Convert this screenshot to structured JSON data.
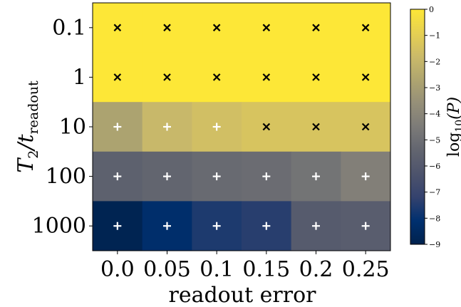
{
  "chart_data": {
    "type": "heatmap",
    "title": "",
    "xlabel": "readout error",
    "ylabel": "T₂/t_readout",
    "ylabel_main": "T",
    "ylabel_sub1": "2",
    "ylabel_mid": "/t",
    "ylabel_sub2": "readout",
    "x_categories": [
      "0.0",
      "0.05",
      "0.1",
      "0.15",
      "0.2",
      "0.25"
    ],
    "y_categories": [
      "0.1",
      "1",
      "10",
      "100",
      "1000"
    ],
    "values": [
      [
        0,
        0,
        0,
        0,
        0,
        0
      ],
      [
        0,
        0,
        0,
        0,
        0,
        0
      ],
      [
        -2.8,
        -1.9,
        -1.6,
        -1.4,
        -1.4,
        -1.4
      ],
      [
        -5.6,
        -5.4,
        -5.2,
        -5.1,
        -4.8,
        -4.3
      ],
      [
        -8.9,
        -8.2,
        -7.6,
        -7.4,
        -5.9,
        -5.8
      ]
    ],
    "markers": [
      [
        "x",
        "x",
        "x",
        "x",
        "x",
        "x"
      ],
      [
        "x",
        "x",
        "x",
        "x",
        "x",
        "x"
      ],
      [
        "+",
        "+",
        "+",
        "x",
        "x",
        "x"
      ],
      [
        "+",
        "+",
        "+",
        "+",
        "+",
        "+"
      ],
      [
        "+",
        "+",
        "+",
        "+",
        "+",
        "+"
      ]
    ],
    "colorbar": {
      "label": "log₁₀(P̅)",
      "label_main": "log",
      "label_sub": "10",
      "label_arg": "(P)",
      "min": -9,
      "max": 0,
      "ticks": [
        "0",
        "−1",
        "−2",
        "−3",
        "−4",
        "−5",
        "−6",
        "−7",
        "−8",
        "−9"
      ],
      "colormap": "cividis"
    }
  }
}
